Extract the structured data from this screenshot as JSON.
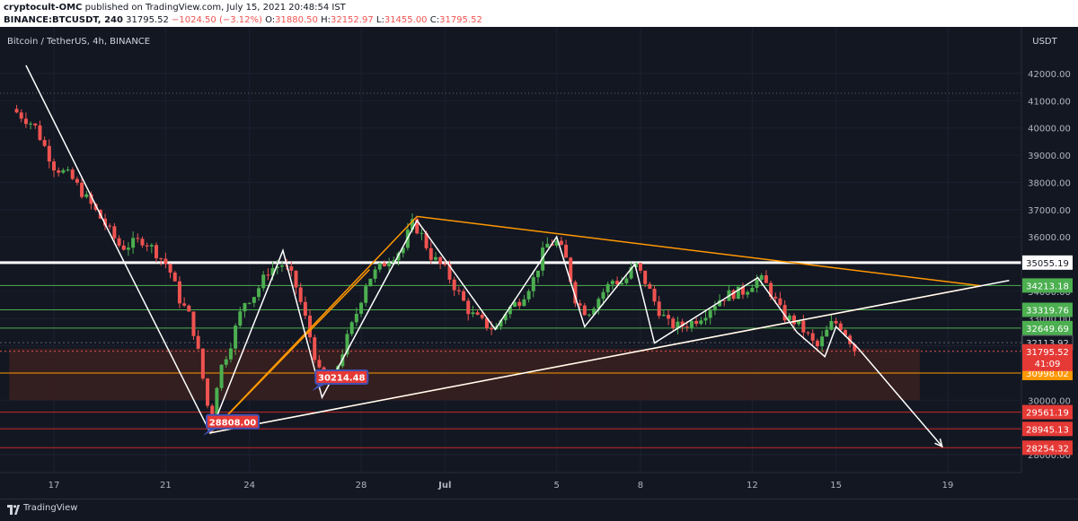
{
  "header": {
    "author": "cryptocult-OMC",
    "published": "published on TradingView.com, July 15, 2021 20:48:54 IST",
    "symbol": "BINANCE:BTCUSDT, 240",
    "last": "31795.52",
    "change": "−1024.50 (−3.12%)",
    "o_label": "O:",
    "o_value": "31880.50",
    "h_label": "H:",
    "h_value": "32152.97",
    "l_label": "L:",
    "l_value": "31455.00",
    "c_label": "C:",
    "c_value": "31795.52"
  },
  "footer": {
    "brand": "TradingView"
  },
  "colors": {
    "background": "#131722",
    "up": "#26a69a",
    "up_candle": "#4caf50",
    "down": "#ef5350",
    "orange": "#ff9800",
    "white_line": "#ffffff",
    "zone": "#3a2020"
  },
  "chart_data": {
    "type": "candlestick",
    "title": "Bitcoin / TetherUS, 4h, BINANCE",
    "currency": "USDT",
    "ylim": [
      27200,
      42900
    ],
    "y_ticks": [
      28000,
      29000,
      30000,
      31000,
      32000,
      33000,
      34000,
      35000,
      36000,
      37000,
      38000,
      39000,
      40000,
      41000,
      42000
    ],
    "y_tick_labels": [
      "28000.00",
      "29000.00",
      "30000.00",
      "31000.00",
      "32000.00",
      "33000.00",
      "34000.00",
      "35000.00",
      "36000.00",
      "37000.00",
      "38000.00",
      "39000.00",
      "40000.00",
      "41000.00",
      "42000.00"
    ],
    "x_ticks": [
      {
        "label": "17",
        "day": 17
      },
      {
        "label": "21",
        "day": 21
      },
      {
        "label": "24",
        "day": 24
      },
      {
        "label": "28",
        "day": 28
      },
      {
        "label": "Jul",
        "day": 31
      },
      {
        "label": "5",
        "day": 35
      },
      {
        "label": "8",
        "day": 38
      },
      {
        "label": "12",
        "day": 42
      },
      {
        "label": "15",
        "day": 45
      },
      {
        "label": "19",
        "day": 49
      }
    ],
    "x_range": [
      15.4,
      51.2
    ],
    "price_path": [
      [
        15.5,
        40700
      ],
      [
        16.3,
        40100
      ],
      [
        17.0,
        38600
      ],
      [
        17.6,
        38200
      ],
      [
        18.1,
        37500
      ],
      [
        18.8,
        36500
      ],
      [
        19.4,
        35600
      ],
      [
        20.2,
        35900
      ],
      [
        20.6,
        35500
      ],
      [
        21.1,
        34900
      ],
      [
        21.5,
        33700
      ],
      [
        21.9,
        33000
      ],
      [
        22.2,
        31600
      ],
      [
        22.6,
        29200
      ],
      [
        22.9,
        31000
      ],
      [
        23.3,
        32000
      ],
      [
        23.8,
        33600
      ],
      [
        24.2,
        33900
      ],
      [
        24.7,
        34800
      ],
      [
        25.2,
        35000
      ],
      [
        25.6,
        34400
      ],
      [
        26.0,
        33000
      ],
      [
        26.5,
        31000
      ],
      [
        26.9,
        30500
      ],
      [
        27.3,
        31700
      ],
      [
        27.8,
        33100
      ],
      [
        28.2,
        34400
      ],
      [
        28.6,
        34800
      ],
      [
        29.0,
        35200
      ],
      [
        29.5,
        35600
      ],
      [
        29.8,
        36500
      ],
      [
        30.1,
        36200
      ],
      [
        30.5,
        35300
      ],
      [
        31.0,
        34800
      ],
      [
        31.5,
        33900
      ],
      [
        31.9,
        33200
      ],
      [
        32.4,
        32800
      ],
      [
        32.8,
        32600
      ],
      [
        33.2,
        33300
      ],
      [
        33.7,
        33700
      ],
      [
        34.2,
        34500
      ],
      [
        34.6,
        35700
      ],
      [
        35.0,
        35800
      ],
      [
        35.3,
        35300
      ],
      [
        35.7,
        33600
      ],
      [
        36.1,
        33200
      ],
      [
        36.6,
        33900
      ],
      [
        37.0,
        34400
      ],
      [
        37.4,
        34300
      ],
      [
        37.8,
        35000
      ],
      [
        38.2,
        34300
      ],
      [
        38.6,
        33400
      ],
      [
        39.0,
        32800
      ],
      [
        39.4,
        32700
      ],
      [
        39.9,
        32900
      ],
      [
        40.3,
        33200
      ],
      [
        40.8,
        33700
      ],
      [
        41.2,
        33900
      ],
      [
        41.7,
        34000
      ],
      [
        42.1,
        34400
      ],
      [
        42.4,
        34400
      ],
      [
        42.7,
        33900
      ],
      [
        43.1,
        33100
      ],
      [
        43.5,
        32900
      ],
      [
        43.9,
        32500
      ],
      [
        44.3,
        31900
      ],
      [
        44.6,
        32400
      ],
      [
        44.9,
        32900
      ],
      [
        45.2,
        32700
      ],
      [
        45.5,
        32200
      ],
      [
        45.7,
        31800
      ]
    ],
    "horizontal_levels": [
      {
        "price": 35055.19,
        "label": "35055.19",
        "style": "resistance",
        "label_bg": "#ffffff",
        "label_fg": "#131722"
      },
      {
        "price": 34213.18,
        "label": "34213.18",
        "style": "green",
        "label_bg": "#4caf50",
        "label_fg": "#ffffff"
      },
      {
        "price": 33319.76,
        "label": "33319.76",
        "style": "green",
        "label_bg": "#4caf50",
        "label_fg": "#ffffff"
      },
      {
        "price": 32649.69,
        "label": "32649.69",
        "style": "green",
        "label_bg": "#4caf50",
        "label_fg": "#ffffff"
      },
      {
        "price": 32113.92,
        "label": "32113.92",
        "style": "dark",
        "label_bg": "#131722",
        "label_fg": "#d1d4dc"
      },
      {
        "price": 30998.02,
        "label": "30998.02",
        "style": "orange",
        "label_bg": "#ff9800",
        "label_fg": "#ffffff"
      },
      {
        "price": 29561.19,
        "label": "29561.19",
        "style": "red",
        "label_bg": "#e53935",
        "label_fg": "#ffffff"
      },
      {
        "price": 28945.13,
        "label": "28945.13",
        "style": "red",
        "label_bg": "#e53935",
        "label_fg": "#ffffff"
      },
      {
        "price": 28254.32,
        "label": "28254.32",
        "style": "red",
        "label_bg": "#e53935",
        "label_fg": "#ffffff"
      }
    ],
    "last_price": {
      "label": "31795.52",
      "countdown": "41:09"
    },
    "zone": {
      "from_day": 15.4,
      "to_day": 48.0,
      "low": 30000,
      "high": 31900
    },
    "white_pattern": [
      [
        16.0,
        42300
      ],
      [
        19.5,
        35100
      ],
      [
        22.6,
        28800
      ],
      [
        25.2,
        35500
      ],
      [
        26.6,
        30100
      ],
      [
        30.0,
        36600
      ],
      [
        32.8,
        32600
      ],
      [
        35.0,
        36000
      ],
      [
        36.0,
        32700
      ],
      [
        37.8,
        35000
      ],
      [
        38.5,
        32100
      ],
      [
        42.2,
        34500
      ],
      [
        43.6,
        32500
      ],
      [
        44.6,
        31600
      ],
      [
        45.0,
        32700
      ],
      [
        45.8,
        31900
      ],
      [
        48.8,
        28300
      ]
    ],
    "white_trendline": [
      [
        22.6,
        28800
      ],
      [
        51.2,
        34400
      ]
    ],
    "orange_triangle": [
      [
        22.6,
        28800
      ],
      [
        30.0,
        36750
      ],
      [
        50.2,
        34200
      ]
    ],
    "orange_left_leg": [
      [
        22.6,
        28800
      ],
      [
        28.3,
        34800
      ]
    ],
    "annotations": [
      {
        "label": "28808.00",
        "day": 23.4,
        "price": 29210
      },
      {
        "label": "30214.48",
        "day": 27.3,
        "price": 30850
      }
    ]
  }
}
